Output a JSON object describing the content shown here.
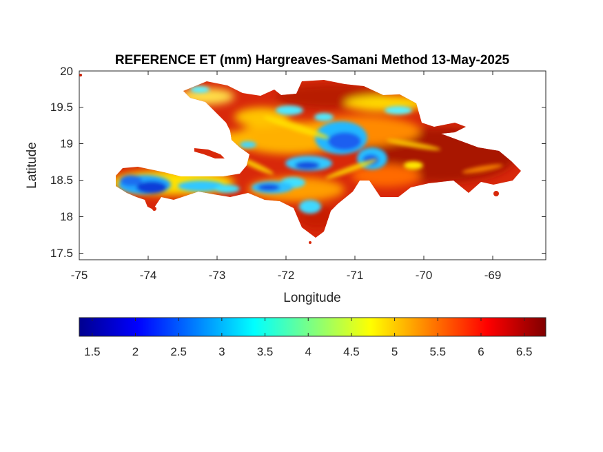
{
  "title": "REFERENCE ET (mm) Hargreaves-Samani Method  13-May-2025",
  "axes": {
    "xlabel": "Longitude",
    "ylabel": "Latitude",
    "xlim": [
      -75,
      -68.22
    ],
    "ylim": [
      17.42,
      20
    ],
    "xticks": [
      -75,
      -74,
      -73,
      -72,
      -71,
      -70,
      -69
    ],
    "xtick_labels": [
      "-75",
      "-74",
      "-73",
      "-72",
      "-71",
      "-70",
      "-69"
    ],
    "yticks": [
      17.5,
      18,
      18.5,
      19,
      19.5,
      20
    ],
    "ytick_labels": [
      "17.5",
      "18",
      "18.5",
      "19",
      "19.5",
      "20"
    ]
  },
  "colorbar": {
    "colormap": "jet",
    "range": [
      1.35,
      6.75
    ],
    "ticks": [
      1.5,
      2,
      2.5,
      3,
      3.5,
      4,
      4.5,
      5,
      5.5,
      6,
      6.5
    ],
    "tick_labels": [
      "1.5",
      "2",
      "2.5",
      "3",
      "3.5",
      "4",
      "4.5",
      "5",
      "5.5",
      "6",
      "6.5"
    ],
    "colors": [
      "#00008f",
      "#0000ff",
      "#00ffff",
      "#ffff00",
      "#ff0000",
      "#800000"
    ]
  },
  "map": {
    "region": "Hispaniola",
    "landmass_color": "#e03a10",
    "low_et_zones_color": "#1a6ee8"
  }
}
